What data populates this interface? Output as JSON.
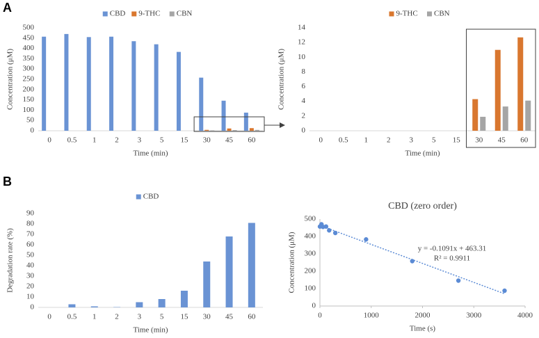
{
  "chart_data": [
    {
      "type": "bar",
      "panel": "A",
      "x_label": "Time (min)",
      "y_label": "Concentration (μM)",
      "categories": [
        "0",
        "0.5",
        "1",
        "2",
        "3",
        "5",
        "15",
        "30",
        "45",
        "60"
      ],
      "series": [
        {
          "name": "CBD",
          "color": "#6a93d4",
          "values": [
            457,
            470,
            455,
            457,
            435,
            420,
            383,
            258,
            146,
            88
          ]
        },
        {
          "name": "9-THC",
          "color": "#d9772f",
          "values": [
            0,
            0,
            0,
            0,
            0,
            0,
            0,
            4.3,
            11,
            12.7
          ]
        },
        {
          "name": "CBN",
          "color": "#a5a5a5",
          "values": [
            0,
            0,
            0,
            0,
            0,
            0,
            0,
            1.9,
            3.3,
            4.1
          ]
        }
      ],
      "ylim": [
        0,
        500
      ],
      "yticks": [
        0,
        50,
        100,
        150,
        200,
        250,
        300,
        350,
        400,
        450,
        500
      ]
    },
    {
      "type": "bar",
      "x_label": "Time (min)",
      "y_label": "Concentration (μM)",
      "categories": [
        "0",
        "0.5",
        "1",
        "2",
        "3",
        "5",
        "15",
        "30",
        "45",
        "60"
      ],
      "series": [
        {
          "name": "9-THC",
          "color": "#d9772f",
          "values": [
            0,
            0,
            0,
            0,
            0,
            0,
            0,
            4.3,
            11,
            12.7
          ]
        },
        {
          "name": "CBN",
          "color": "#a5a5a5",
          "values": [
            0,
            0,
            0,
            0,
            0,
            0,
            0,
            1.9,
            3.3,
            4.1
          ]
        }
      ],
      "ylim": [
        0,
        14
      ],
      "yticks": [
        0,
        2,
        4,
        6,
        8,
        10,
        12,
        14
      ]
    },
    {
      "type": "bar",
      "panel": "B",
      "x_label": "Time (min)",
      "y_label": "Degradation rate (%)",
      "categories": [
        "0",
        "0.5",
        "1",
        "2",
        "3",
        "5",
        "15",
        "30",
        "45",
        "60"
      ],
      "series": [
        {
          "name": "CBD",
          "color": "#6a93d4",
          "values": [
            0,
            3,
            1,
            0.3,
            5,
            8,
            16,
            44,
            68,
            81
          ]
        }
      ],
      "ylim": [
        0,
        90
      ],
      "yticks": [
        0,
        10,
        20,
        30,
        40,
        50,
        60,
        70,
        80,
        90
      ]
    },
    {
      "type": "scatter",
      "title": "CBD (zero order)",
      "x_label": "Time (s)",
      "y_label": "Concentration (μM)",
      "x": [
        0,
        30,
        60,
        120,
        180,
        300,
        900,
        1800,
        2700,
        3600
      ],
      "series": [
        {
          "color": "#5b8bd5",
          "values": [
            457,
            470,
            455,
            457,
            435,
            420,
            383,
            258,
            146,
            88
          ]
        }
      ],
      "trendline": {
        "slope": -0.1091,
        "intercept": 463.31,
        "equation": "y = -0.1091x + 463.31",
        "r2": "R² = 0.9911"
      },
      "xlim": [
        0,
        4000
      ],
      "xticks": [
        0,
        1000,
        2000,
        3000,
        4000
      ],
      "ylim": [
        0,
        500
      ],
      "yticks": [
        0,
        100,
        200,
        300,
        400,
        500
      ]
    }
  ]
}
